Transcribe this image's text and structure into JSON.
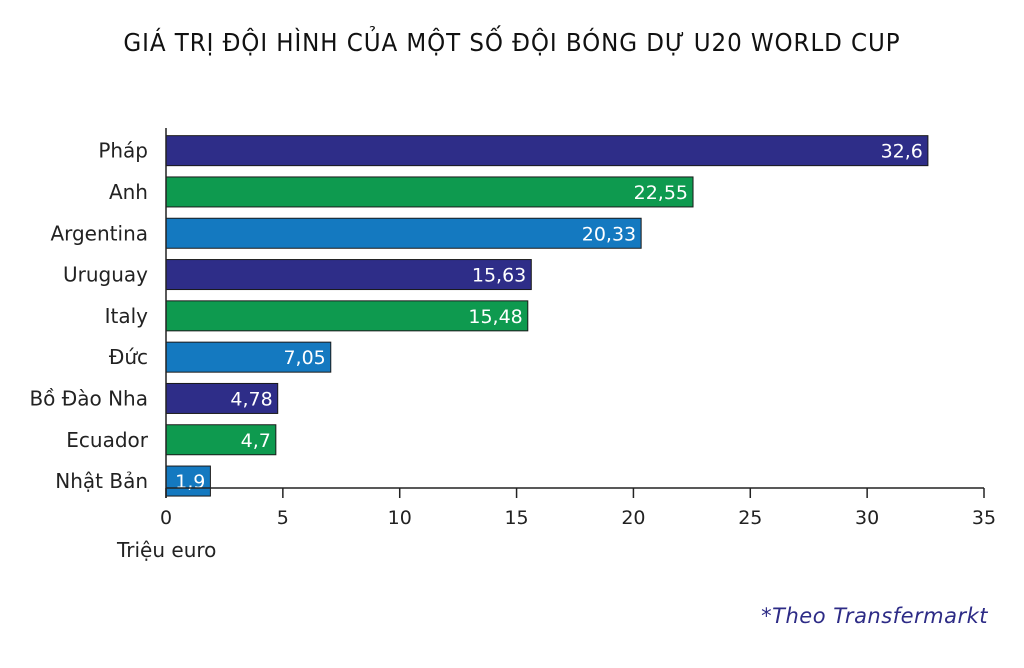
{
  "chart_data": {
    "type": "bar",
    "orientation": "horizontal",
    "title": "GIÁ TRỊ ĐỘI HÌNH CỦA MỘT SỐ ĐỘI BÓNG DỰ U20 WORLD CUP",
    "xlabel": "Triệu euro",
    "ylabel": "",
    "xlim": [
      0,
      35
    ],
    "xticks": [
      0,
      5,
      10,
      15,
      20,
      25,
      30,
      35
    ],
    "categories": [
      "Pháp",
      "Anh",
      "Argentina",
      "Uruguay",
      "Italy",
      "Đức",
      "Bồ Đào Nha",
      "Ecuador",
      "Nhật Bản"
    ],
    "values": [
      32.6,
      22.55,
      20.33,
      15.63,
      15.48,
      7.05,
      4.78,
      4.7,
      1.9
    ],
    "value_labels": [
      "32,6",
      "22,55",
      "20,33",
      "15,63",
      "15,48",
      "7,05",
      "4,78",
      "4,7",
      "1,9"
    ],
    "colors": [
      "#2e2d88",
      "#0e9a4f",
      "#1479c0",
      "#2e2d88",
      "#0e9a4f",
      "#1479c0",
      "#2e2d88",
      "#0e9a4f",
      "#1479c0"
    ],
    "grid": false,
    "legend": "none"
  },
  "source": "*Theo Transfermarkt"
}
